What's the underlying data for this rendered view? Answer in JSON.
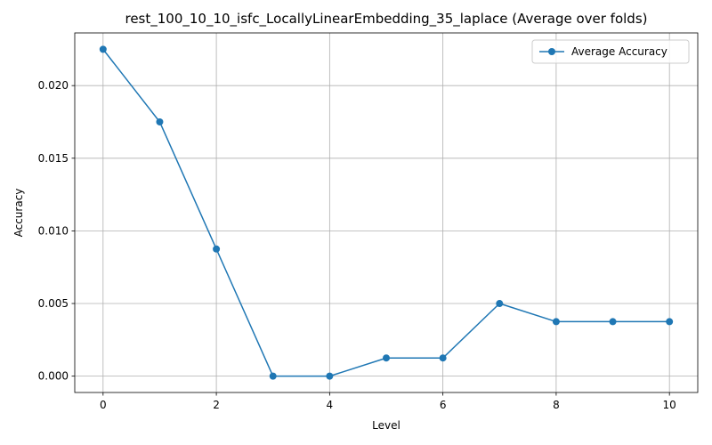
{
  "chart_data": {
    "type": "line",
    "title": "rest_100_10_10_isfc_LocallyLinearEmbedding_35_laplace (Average over folds)",
    "xlabel": "Level",
    "ylabel": "Accuracy",
    "xlim": [
      -0.5,
      10.5
    ],
    "ylim": [
      -0.001125,
      0.023625
    ],
    "xticks": [
      0,
      2,
      4,
      6,
      8,
      10
    ],
    "xtick_labels": [
      "0",
      "2",
      "4",
      "6",
      "8",
      "10"
    ],
    "yticks": [
      0.0,
      0.005,
      0.01,
      0.015,
      0.02
    ],
    "ytick_labels": [
      "0.000",
      "0.005",
      "0.010",
      "0.015",
      "0.020"
    ],
    "grid": true,
    "legend_position": "top-right",
    "x": [
      0,
      1,
      2,
      3,
      4,
      5,
      6,
      7,
      8,
      9,
      10
    ],
    "series": [
      {
        "name": "Average Accuracy",
        "color": "#1f77b4",
        "marker": "circle",
        "values": [
          0.0225,
          0.0175,
          0.00875,
          0.0,
          0.0,
          0.00125,
          0.00125,
          0.005,
          0.00375,
          0.00375,
          0.00375
        ]
      }
    ]
  }
}
